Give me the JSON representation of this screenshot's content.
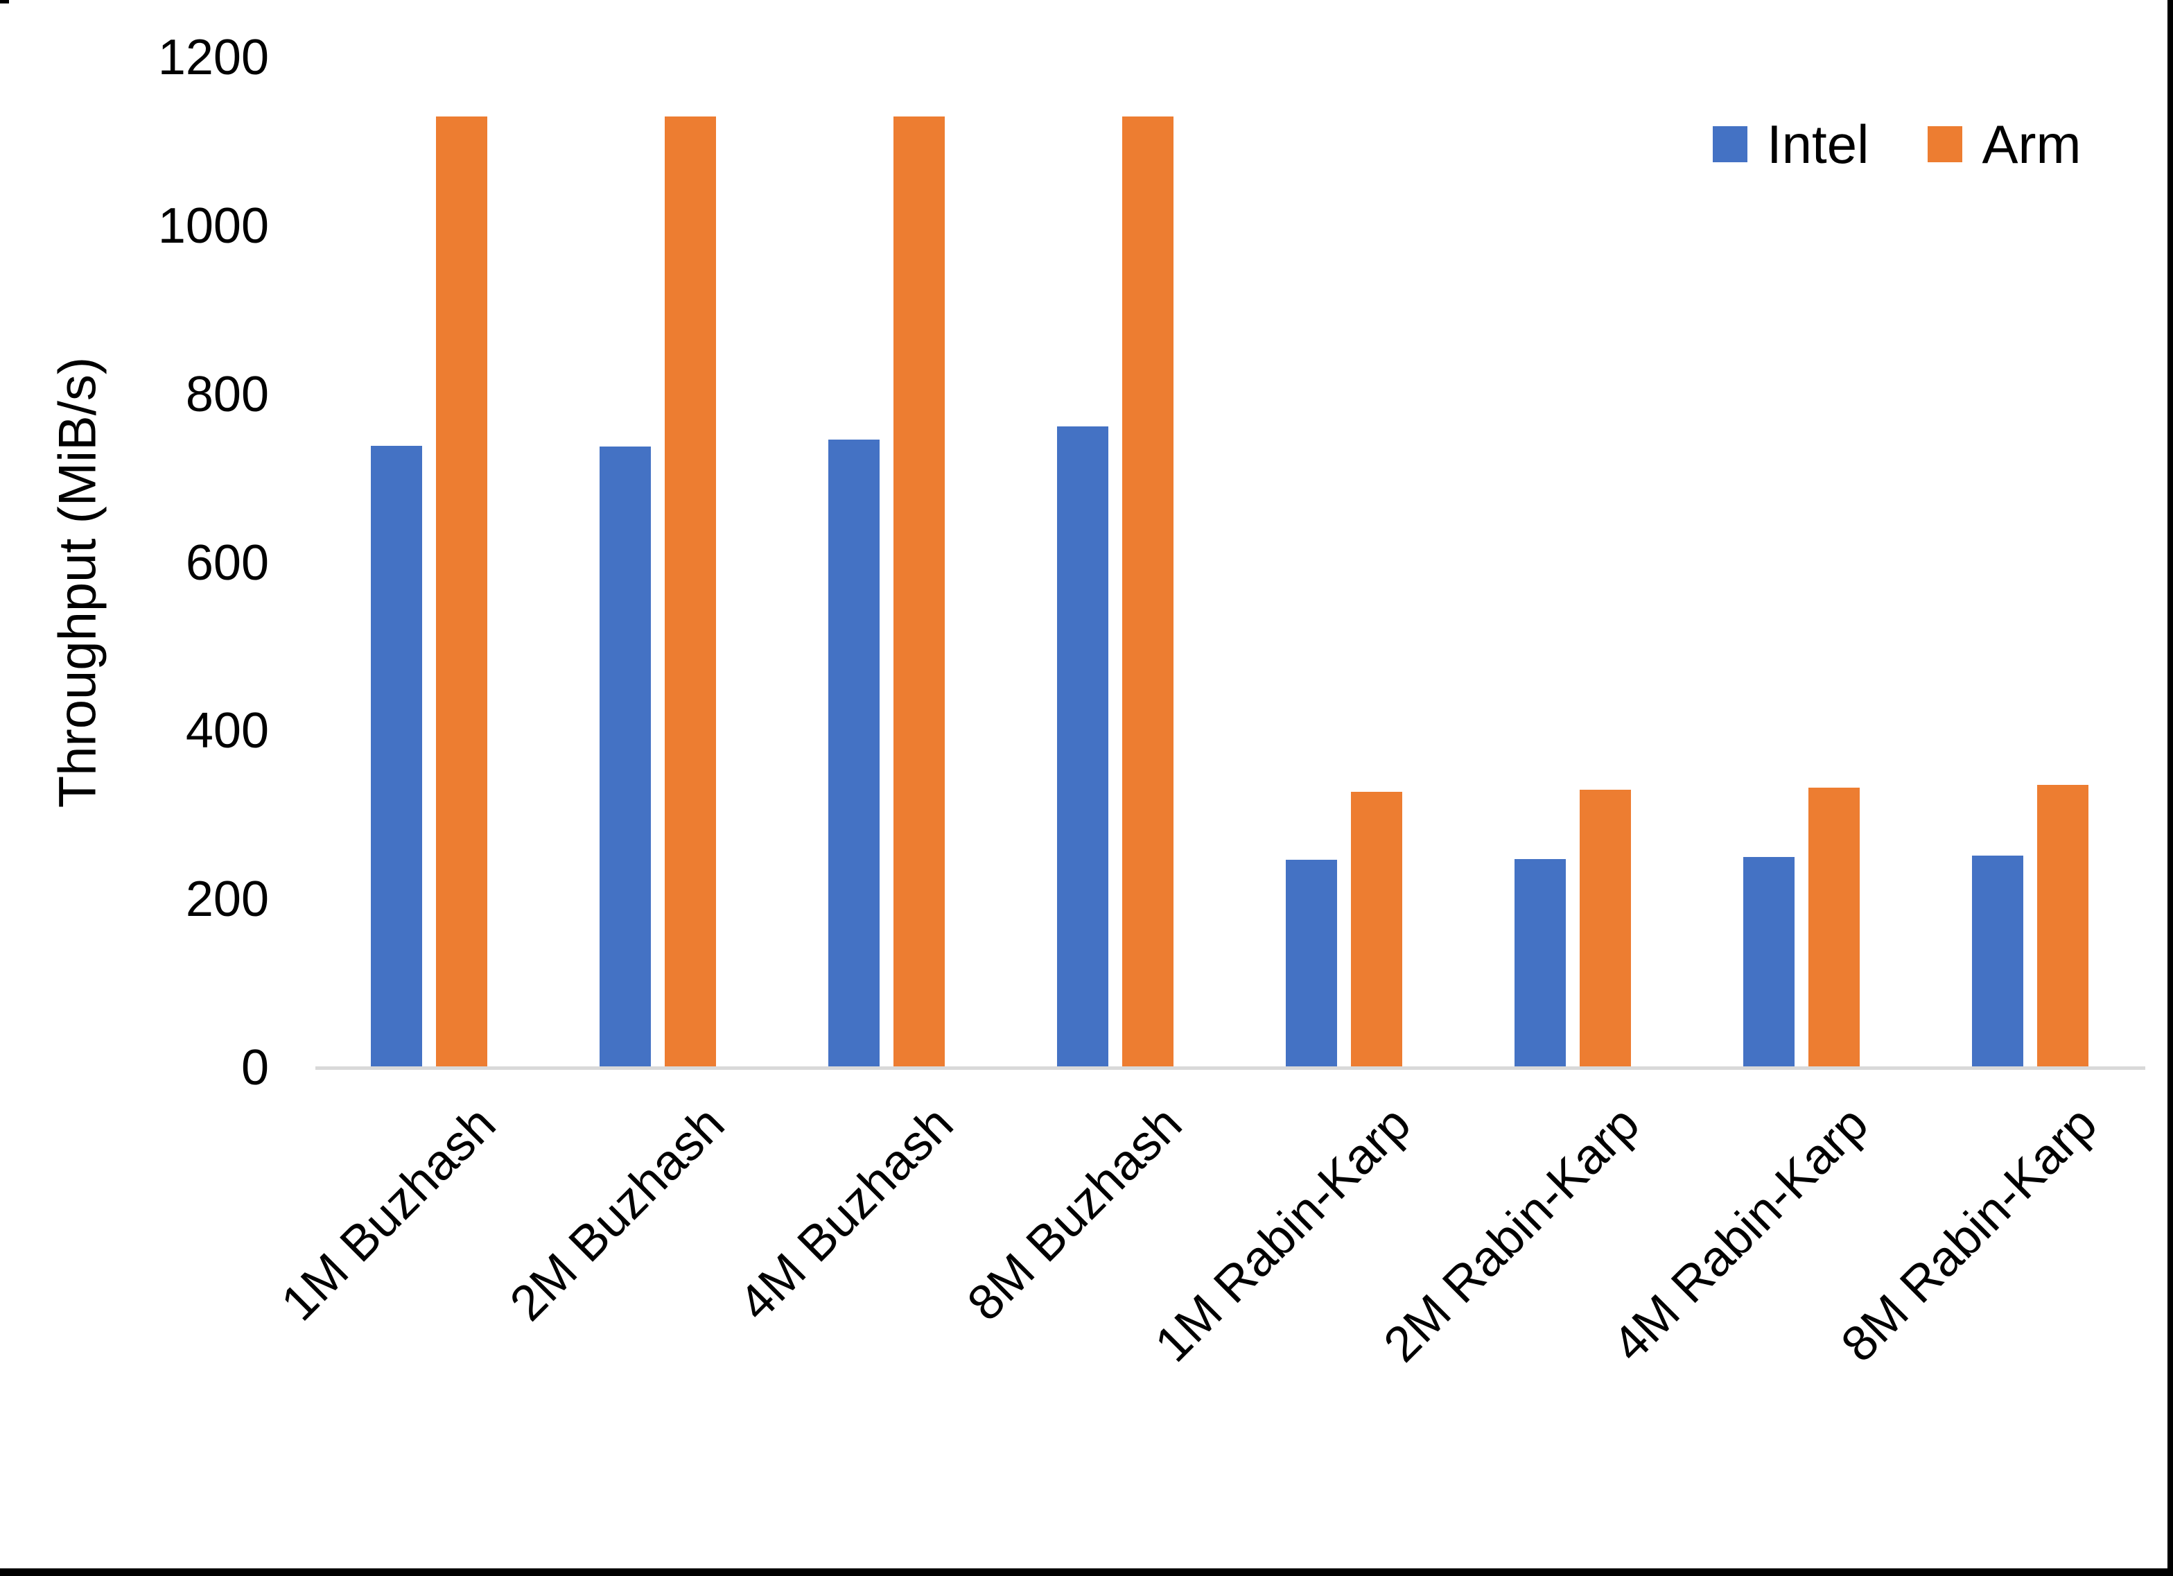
{
  "chart_data": {
    "type": "bar",
    "title": "",
    "xlabel": "",
    "ylabel": "Throughput (MiB/s)",
    "ylim": [
      0,
      1200
    ],
    "ytick_step": 200,
    "yticks": [
      0,
      200,
      400,
      600,
      800,
      1000,
      1200
    ],
    "grid": false,
    "legend_position": "top-right",
    "axis_line_color": "#d9d9d9",
    "background_color": "#ffffff",
    "text_color": "#000000",
    "categories": [
      "1M Buzhash",
      "2M Buzhash",
      "4M Buzhash",
      "8M Buzhash",
      "1M Rabin-Karp",
      "2M Rabin-Karp",
      "4M Rabin-Karp",
      "8M Rabin-Karp"
    ],
    "series": [
      {
        "name": "Intel",
        "color": "#4472c4",
        "values": [
          739,
          738,
          746,
          762,
          247,
          248,
          250,
          252
        ]
      },
      {
        "name": "Arm",
        "color": "#ed7d31",
        "values": [
          1130,
          1130,
          1130,
          1130,
          328,
          330,
          333,
          336
        ]
      }
    ]
  }
}
